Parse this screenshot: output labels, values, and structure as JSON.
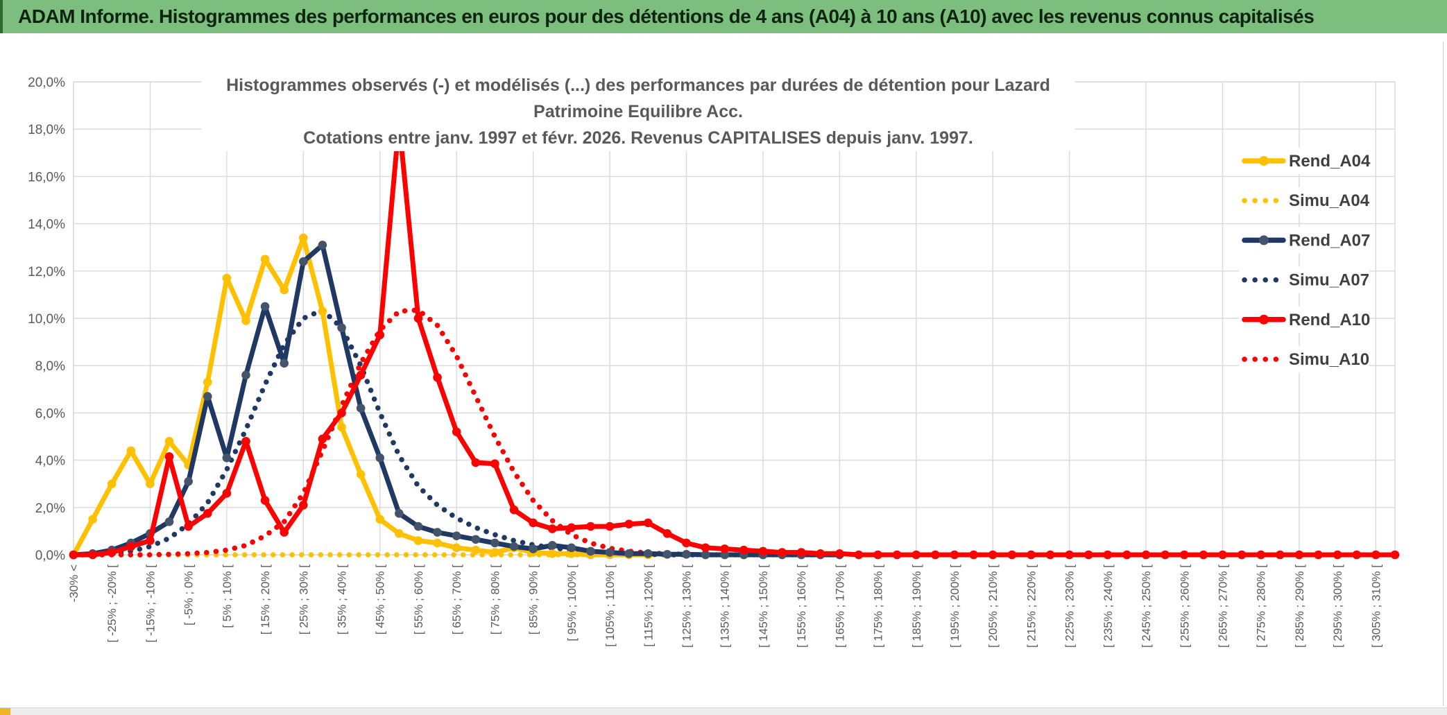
{
  "header": {
    "title": "ADAM Informe. Histogrammes des performances en euros pour des détentions de 4 ans (A04) à 10 ans (A10) avec les revenus connus capitalisés",
    "bg_color": "#7cbe7d",
    "text_color": "#0e2410",
    "accent_color": "#f0b429"
  },
  "chart_data": {
    "type": "line",
    "title": "Histogrammes observés (-) et modélisés (...) des performances par durées de détention pour Lazard Patrimoine Equilibre Acc.",
    "subtitle": "Cotations entre janv. 1997 et févr. 2026. Revenus CAPITALISES depuis janv. 1997.",
    "xlabel": "",
    "ylabel": "",
    "ylim": [
      0,
      20
    ],
    "grid": true,
    "legend_position": "right-inside",
    "y_tick_labels": [
      "20,0%",
      "18,0%",
      "16,0%",
      "14,0%",
      "12,0%",
      "10,0%",
      "8,0%",
      "6,0%",
      "4,0%",
      "2,0%",
      "0,0%"
    ],
    "n_points": 70,
    "x_label_every": 2,
    "x_grid_every": 4,
    "x_tick_labels": [
      "-30% <",
      "[ -25% ; -20% [",
      "[ -15% ; -10% [",
      "[ -5% ; 0% [",
      "[ 5% ; 10% [",
      "[ 15% ; 20% [",
      "[ 25% ; 30% [",
      "[ 35% ; 40% [",
      "[ 45% ; 50% [",
      "[ 55% ; 60% [",
      "[ 65% ; 70% [",
      "[ 75% ; 80% [",
      "[ 85% ; 90% [",
      "[ 95% ; 100% [",
      "[ 105% ; 110% [",
      "[ 115% ; 120% [",
      "[ 125% ; 130% [",
      "[ 135% ; 140% [",
      "[ 145% ; 150% [",
      "[ 155% ; 160% [",
      "[ 165% ; 170% [",
      "[ 175% ; 180% [",
      "[ 185% ; 190% [",
      "[ 195% ; 200% [",
      "[ 205% ; 210% [",
      "[ 215% ; 220% [",
      "[ 225% ; 230% [",
      "[ 235% ; 240% [",
      "[ 245% ; 250% [",
      "[ 255% ; 260% [",
      "[ 265% ; 270% [",
      "[ 275% ; 280% [",
      "[ 285% ; 290% [",
      "[ 295% ; 300% [",
      "[ 305% ; 310% ["
    ],
    "series": [
      {
        "name": "Rend_A04",
        "style": "solid",
        "color": "#ffc000",
        "marker_color": "#ffc000",
        "values": [
          0,
          1.5,
          3,
          4.4,
          3,
          4.8,
          3.8,
          7.3,
          11.7,
          9.9,
          12.5,
          11.2,
          13.4,
          10.3,
          5.4,
          3.4,
          1.5,
          0.9,
          0.6,
          0.5,
          0.3,
          0.2,
          0.1,
          0.3,
          0.1,
          0.05,
          0.05,
          0,
          0,
          0,
          0
        ]
      },
      {
        "name": "Simu_A04",
        "style": "dotted",
        "color": "#ffc000",
        "values": [
          0,
          0,
          0,
          0,
          0,
          0,
          0,
          0,
          0,
          0,
          0,
          0,
          0,
          0,
          0,
          0,
          0,
          0,
          0,
          0,
          0,
          0,
          0,
          0,
          0,
          0,
          0,
          0,
          0,
          0,
          0,
          0,
          0,
          0,
          0,
          0,
          0,
          0,
          0,
          0,
          0
        ]
      },
      {
        "name": "Rend_A07",
        "style": "solid",
        "color": "#1f3864",
        "marker_color": "#44546a",
        "values": [
          0,
          0.05,
          0.2,
          0.5,
          0.9,
          1.4,
          3.1,
          6.7,
          4.1,
          7.6,
          10.5,
          8.1,
          12.4,
          13.1,
          9.6,
          6.2,
          4.1,
          1.75,
          1.2,
          0.95,
          0.8,
          0.65,
          0.5,
          0.35,
          0.25,
          0.4,
          0.3,
          0.15,
          0.1,
          0.05,
          0.05,
          0.02,
          0.02,
          0,
          0,
          0,
          0,
          0,
          0,
          0,
          0
        ]
      },
      {
        "name": "Simu_A07",
        "style": "dotted",
        "color": "#1f3864",
        "values": [
          0,
          0,
          0.05,
          0.15,
          0.35,
          0.7,
          1.3,
          2.2,
          3.6,
          5.3,
          7.2,
          8.9,
          10,
          10.35,
          9.6,
          8,
          6,
          4.2,
          2.9,
          2.1,
          1.55,
          1.15,
          0.85,
          0.6,
          0.42,
          0.3,
          0.2,
          0.12,
          0.07,
          0.04,
          0.02,
          0,
          0,
          0,
          0
        ]
      },
      {
        "name": "Rend_A10",
        "style": "solid",
        "color": "#ff0000",
        "marker_color": "#ff0000",
        "values": [
          0,
          0,
          0.1,
          0.35,
          0.6,
          4.15,
          1.2,
          1.75,
          2.6,
          4.8,
          2.3,
          0.95,
          2.1,
          4.9,
          6,
          7.6,
          9.3,
          18.3,
          10,
          7.5,
          5.2,
          3.9,
          3.85,
          1.9,
          1.35,
          1.1,
          1.15,
          1.2,
          1.2,
          1.3,
          1.35,
          0.9,
          0.5,
          0.3,
          0.25,
          0.2,
          0.15,
          0.1,
          0.1,
          0.05,
          0.05,
          0,
          0,
          0,
          0,
          0,
          0,
          0,
          0,
          0,
          0,
          0,
          0,
          0,
          0,
          0,
          0,
          0,
          0,
          0,
          0,
          0,
          0,
          0,
          0,
          0,
          0,
          0,
          0,
          0
        ]
      },
      {
        "name": "Simu_A10",
        "style": "dotted",
        "color": "#ff0000",
        "values": [
          0,
          0,
          0,
          0,
          0,
          0.02,
          0.05,
          0.1,
          0.2,
          0.4,
          0.8,
          1.4,
          2.6,
          4.4,
          6.3,
          8.1,
          9.5,
          10.3,
          10.35,
          9.7,
          8.4,
          6.7,
          5,
          3.5,
          2.3,
          1.45,
          0.85,
          0.5,
          0.28,
          0.15,
          0.08,
          0.04,
          0.02,
          0,
          0,
          0,
          0,
          0,
          0,
          0,
          0
        ]
      }
    ],
    "draw_order": [
      1,
      3,
      5,
      0,
      2,
      4
    ],
    "axis_label_color": "#595959",
    "grid_color": "#d9d9d9",
    "legend_text_color": "#404040"
  },
  "footer": {
    "scrollbar_color": "#ededed",
    "thumb_color": "#f0b429"
  }
}
